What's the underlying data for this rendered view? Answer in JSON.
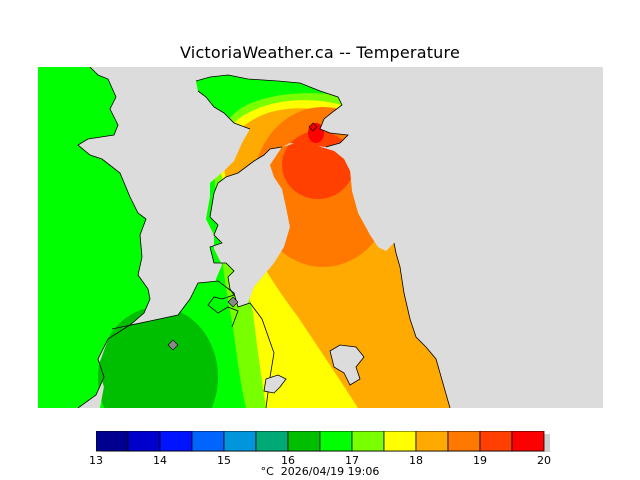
{
  "title": "VictoriaWeather.ca -- Temperature",
  "legend": {
    "unit": "°C",
    "timestamp": "2026/04/19 19:06",
    "min": 13,
    "max": 20,
    "tick_labels": [
      "13",
      "14",
      "15",
      "16",
      "17",
      "18",
      "19",
      "20"
    ],
    "colors": [
      "#000090",
      "#0000cc",
      "#0014ff",
      "#0064ff",
      "#0096dc",
      "#00aa78",
      "#00be00",
      "#00ff00",
      "#78ff00",
      "#ffff00",
      "#ffaa00",
      "#ff7800",
      "#ff4000",
      "#ff0000"
    ]
  },
  "map": {
    "water_color": "#dcdcdc",
    "stations": [
      "station-marker",
      "station-marker"
    ]
  }
}
